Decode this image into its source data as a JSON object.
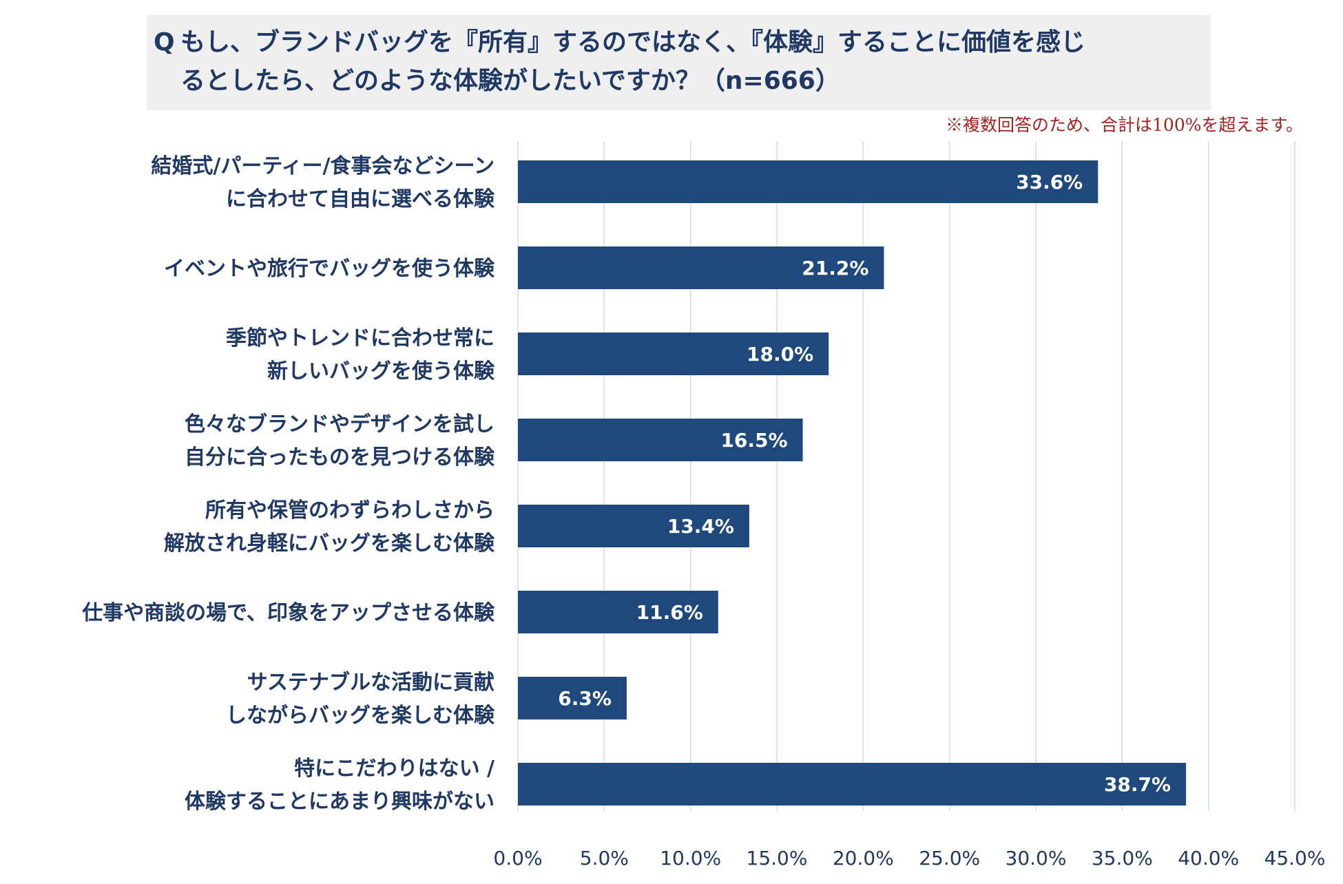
{
  "title": {
    "prefix": "Q",
    "line1": "もし、ブランドバッグを『所有』するのではなく、『体験』することに価値を感じ",
    "line2": "るとしたら、どのような体験がしたいですか？（n=666）"
  },
  "note": "※複数回答のため、合計は100%を超えます。",
  "colors": {
    "bar": "#1f497d",
    "grid": "#cfdbe8",
    "text": "#1f3864",
    "note": "#a3231f"
  },
  "chart_data": {
    "type": "bar",
    "orientation": "horizontal",
    "categories": [
      [
        "結婚式/パーティー/食事会などシーン",
        "に合わせて自由に選べる体験"
      ],
      [
        "イベントや旅行でバッグを使う体験"
      ],
      [
        "季節やトレンドに合わせ常に",
        "新しいバッグを使う体験"
      ],
      [
        "色々なブランドやデザインを試し",
        "自分に合ったものを見つける体験"
      ],
      [
        "所有や保管のわずらわしさから",
        "解放され身軽にバッグを楽しむ体験"
      ],
      [
        "仕事や商談の場で、印象をアップさせる体験"
      ],
      [
        "サステナブルな活動に貢献",
        "しながらバッグを楽しむ体験"
      ],
      [
        "特にこだわりはない /",
        "体験することにあまり興味がない"
      ]
    ],
    "values": [
      33.6,
      21.2,
      18.0,
      16.5,
      13.4,
      11.6,
      6.3,
      38.7
    ],
    "value_labels": [
      "33.6%",
      "21.2%",
      "18.0%",
      "16.5%",
      "13.4%",
      "11.6%",
      "6.3%",
      "38.7%"
    ],
    "xlim": [
      0,
      45
    ],
    "xticks": [
      0,
      5,
      10,
      15,
      20,
      25,
      30,
      35,
      40,
      45
    ],
    "xtick_labels": [
      "0.0%",
      "5.0%",
      "10.0%",
      "15.0%",
      "20.0%",
      "25.0%",
      "30.0%",
      "35.0%",
      "40.0%",
      "45.0%"
    ],
    "grid": true,
    "legend": "none"
  }
}
